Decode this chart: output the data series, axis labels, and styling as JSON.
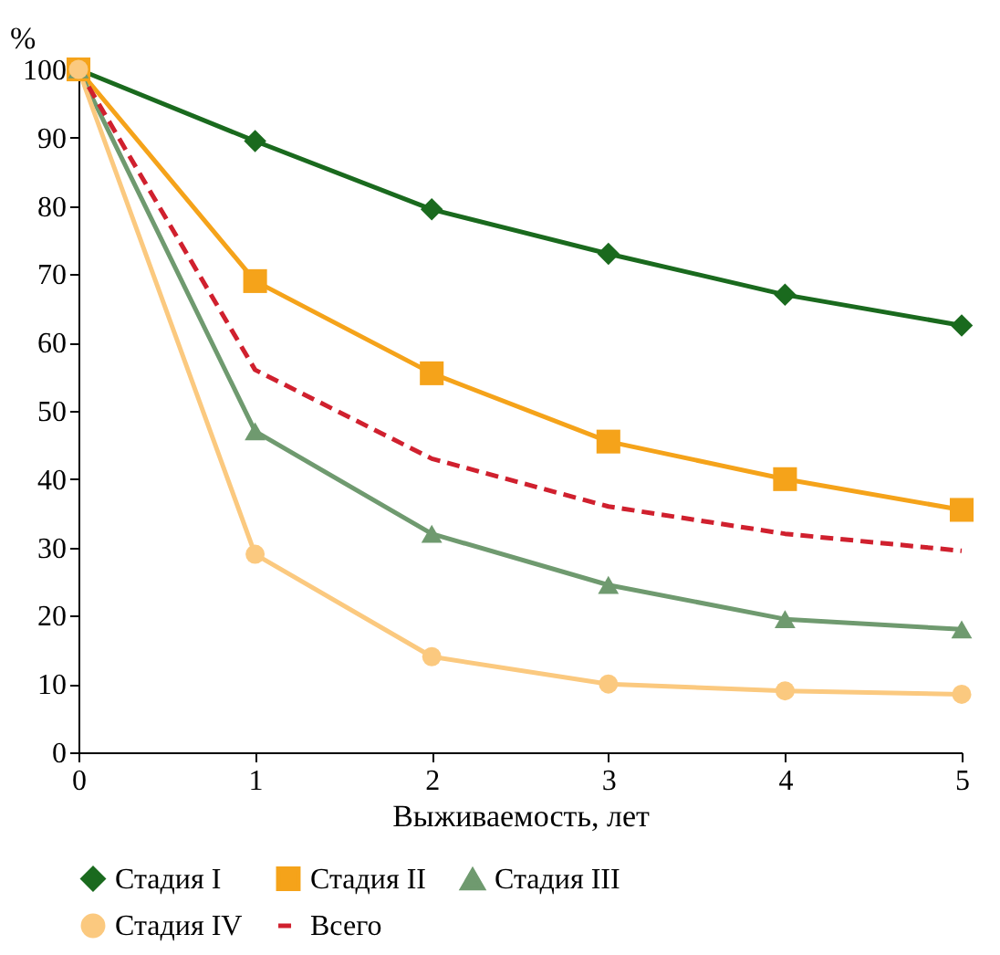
{
  "chart_data": {
    "type": "line",
    "xlabel": "Выживаемость, лет",
    "ylabel": "%",
    "x": [
      0,
      1,
      2,
      3,
      4,
      5
    ],
    "xlim": [
      0,
      5
    ],
    "xticks": [
      0,
      1,
      2,
      3,
      4,
      5
    ],
    "ylim": [
      0,
      100
    ],
    "yticks": [
      0,
      10,
      20,
      30,
      40,
      50,
      60,
      70,
      80,
      90,
      100
    ],
    "grid": false,
    "legend": "bottom",
    "series": [
      {
        "name": "Стадия I",
        "color": "#1a6a1e",
        "marker": "diamond",
        "line_style": "solid",
        "values": [
          100,
          89.5,
          79.5,
          73,
          67,
          62.5
        ]
      },
      {
        "name": "Стадия II",
        "color": "#f5a31a",
        "marker": "square",
        "line_style": "solid",
        "values": [
          100,
          69,
          55.5,
          45.5,
          40,
          35.5
        ]
      },
      {
        "name": "Стадия III",
        "color": "#6f9a6f",
        "marker": "triangle",
        "line_style": "solid",
        "values": [
          100,
          47,
          32,
          24.5,
          19.5,
          18
        ]
      },
      {
        "name": "Стадия IV",
        "color": "#fbc97f",
        "marker": "circle",
        "line_style": "solid",
        "values": [
          100,
          29,
          14,
          10,
          9,
          8.5
        ]
      },
      {
        "name": "Всего",
        "color": "#d0202e",
        "marker": "none",
        "line_style": "dashed",
        "values": [
          100,
          56,
          43,
          36,
          32,
          29.5
        ]
      }
    ]
  }
}
